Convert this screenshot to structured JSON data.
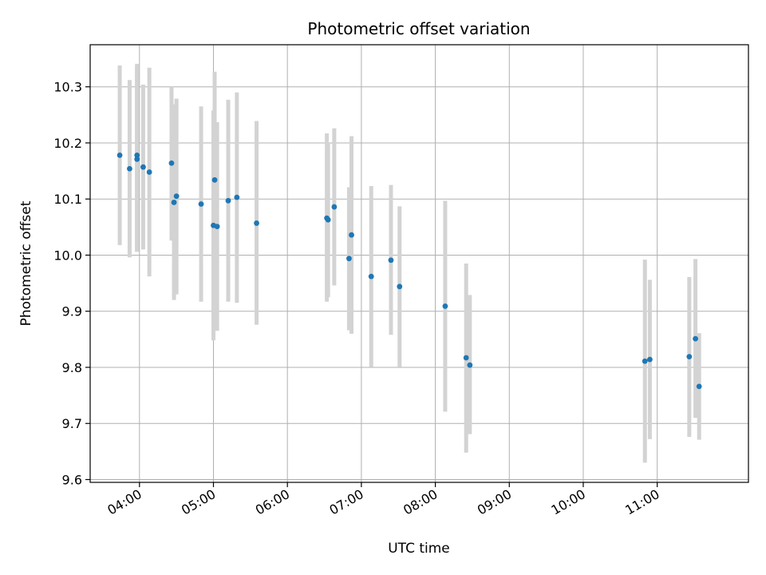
{
  "chart_data": {
    "type": "scatter",
    "title": "Photometric offset variation",
    "xlabel": "UTC time",
    "ylabel": "Photometric offset",
    "xlim": [
      "03:20",
      "12:14"
    ],
    "ylim": [
      9.595,
      10.375
    ],
    "xticks": [
      "04:00",
      "05:00",
      "06:00",
      "07:00",
      "08:00",
      "09:00",
      "10:00",
      "11:00"
    ],
    "yticks": [
      9.6,
      9.7,
      9.8,
      9.9,
      10.0,
      10.1,
      10.2,
      10.3
    ],
    "ytick_labels": [
      "9.6",
      "9.7",
      "9.8",
      "9.9",
      "10.0",
      "10.1",
      "10.2",
      "10.3"
    ],
    "grid": true,
    "legend": "none",
    "colors": {
      "point": "#1f77b4",
      "errorbar": "#d3d3d3",
      "grid": "#b0b0b0"
    },
    "points": [
      {
        "x": "03:44",
        "y": 10.178,
        "lo": 10.018,
        "hi": 10.338
      },
      {
        "x": "03:52",
        "y": 10.154,
        "lo": 9.996,
        "hi": 10.312
      },
      {
        "x": "03:58",
        "y": 10.178,
        "lo": 10.006,
        "hi": 10.341
      },
      {
        "x": "03:58",
        "y": 10.171,
        "lo": 10.006,
        "hi": 10.336
      },
      {
        "x": "04:03",
        "y": 10.157,
        "lo": 10.01,
        "hi": 10.304
      },
      {
        "x": "04:08",
        "y": 10.148,
        "lo": 9.962,
        "hi": 10.334
      },
      {
        "x": "04:26",
        "y": 10.164,
        "lo": 10.026,
        "hi": 10.3
      },
      {
        "x": "04:28",
        "y": 10.094,
        "lo": 9.92,
        "hi": 10.269
      },
      {
        "x": "04:30",
        "y": 10.105,
        "lo": 9.93,
        "hi": 10.279
      },
      {
        "x": "04:50",
        "y": 10.091,
        "lo": 9.917,
        "hi": 10.265
      },
      {
        "x": "05:00",
        "y": 10.053,
        "lo": 9.848,
        "hi": 10.258
      },
      {
        "x": "05:01",
        "y": 10.134,
        "lo": 9.941,
        "hi": 10.327
      },
      {
        "x": "05:03",
        "y": 10.051,
        "lo": 9.865,
        "hi": 10.237
      },
      {
        "x": "05:12",
        "y": 10.097,
        "lo": 9.917,
        "hi": 10.277
      },
      {
        "x": "05:19",
        "y": 10.103,
        "lo": 9.915,
        "hi": 10.29
      },
      {
        "x": "05:35",
        "y": 10.057,
        "lo": 9.876,
        "hi": 10.239
      },
      {
        "x": "06:32",
        "y": 10.066,
        "lo": 9.917,
        "hi": 10.217
      },
      {
        "x": "06:33",
        "y": 10.063,
        "lo": 9.925,
        "hi": 10.201
      },
      {
        "x": "06:38",
        "y": 10.086,
        "lo": 9.946,
        "hi": 10.226
      },
      {
        "x": "06:50",
        "y": 9.994,
        "lo": 9.866,
        "hi": 10.121
      },
      {
        "x": "06:52",
        "y": 10.036,
        "lo": 9.86,
        "hi": 10.212
      },
      {
        "x": "07:08",
        "y": 9.962,
        "lo": 9.801,
        "hi": 10.123
      },
      {
        "x": "07:24",
        "y": 9.991,
        "lo": 9.858,
        "hi": 10.125
      },
      {
        "x": "07:31",
        "y": 9.944,
        "lo": 9.801,
        "hi": 10.087
      },
      {
        "x": "08:08",
        "y": 9.909,
        "lo": 9.721,
        "hi": 10.097
      },
      {
        "x": "08:25",
        "y": 9.817,
        "lo": 9.648,
        "hi": 9.985
      },
      {
        "x": "08:28",
        "y": 9.804,
        "lo": 9.681,
        "hi": 9.929
      },
      {
        "x": "10:50",
        "y": 9.811,
        "lo": 9.63,
        "hi": 9.992
      },
      {
        "x": "10:54",
        "y": 9.814,
        "lo": 9.672,
        "hi": 9.956
      },
      {
        "x": "11:26",
        "y": 9.819,
        "lo": 9.676,
        "hi": 9.961
      },
      {
        "x": "11:31",
        "y": 9.851,
        "lo": 9.71,
        "hi": 9.993
      },
      {
        "x": "11:34",
        "y": 9.766,
        "lo": 9.671,
        "hi": 9.861
      }
    ]
  }
}
